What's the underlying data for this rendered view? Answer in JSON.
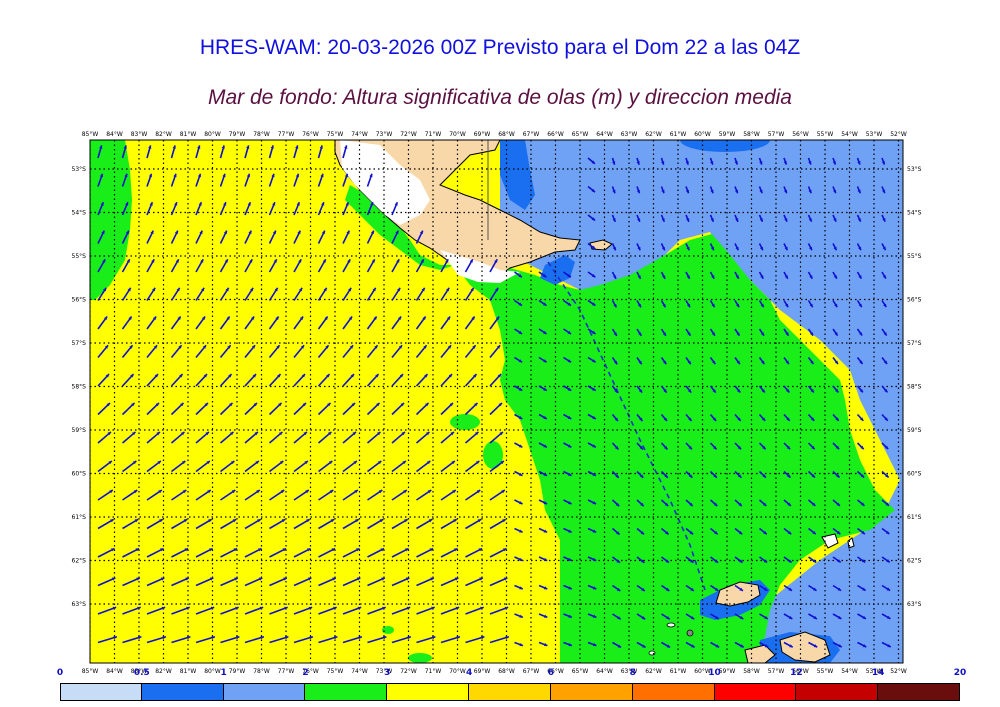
{
  "header": {
    "title": "HRES-WAM: 20-03-2026 00Z Previsto para el Dom 22 a las 04Z",
    "subtitle": "Mar de fondo: Altura significativa de olas (m) y direccion media"
  },
  "map": {
    "lon_labels": [
      "85°W",
      "84°W",
      "83°W",
      "82°W",
      "81°W",
      "80°W",
      "79°W",
      "78°W",
      "77°W",
      "76°W",
      "75°W",
      "74°W",
      "73°W",
      "72°W",
      "71°W",
      "70°W",
      "69°W",
      "68°W",
      "67°W",
      "66°W",
      "65°W",
      "64°W",
      "63°W",
      "62°W",
      "61°W",
      "60°W",
      "59°W",
      "58°W",
      "57°W",
      "56°W",
      "55°W",
      "54°W",
      "53°W",
      "52°W"
    ],
    "lat_labels": [
      "53°S",
      "54°S",
      "55°S",
      "56°S",
      "57°S",
      "58°S",
      "59°S",
      "60°S",
      "61°S",
      "62°S",
      "63°S"
    ],
    "colors": {
      "yellow": "#ffff00",
      "green": "#19ee19",
      "medium_blue": "#6fa2f5",
      "dark_blue": "#1a6ff0",
      "land": "#f8d8a8",
      "arrow": "#1010d0",
      "coast": "#000000"
    }
  },
  "colorbar": {
    "tick_labels": [
      "0",
      "0.5",
      "1",
      "2",
      "3",
      "4",
      "6",
      "8",
      "10",
      "12",
      "14",
      "20"
    ],
    "colors": [
      "#c6dcf7",
      "#1a6ff0",
      "#6fa2f5",
      "#19ee19",
      "#ffff00",
      "#ffd800",
      "#ffa200",
      "#ff7000",
      "#ff0000",
      "#c40000",
      "#6a0d0d",
      "#333333"
    ],
    "unit": "m"
  }
}
